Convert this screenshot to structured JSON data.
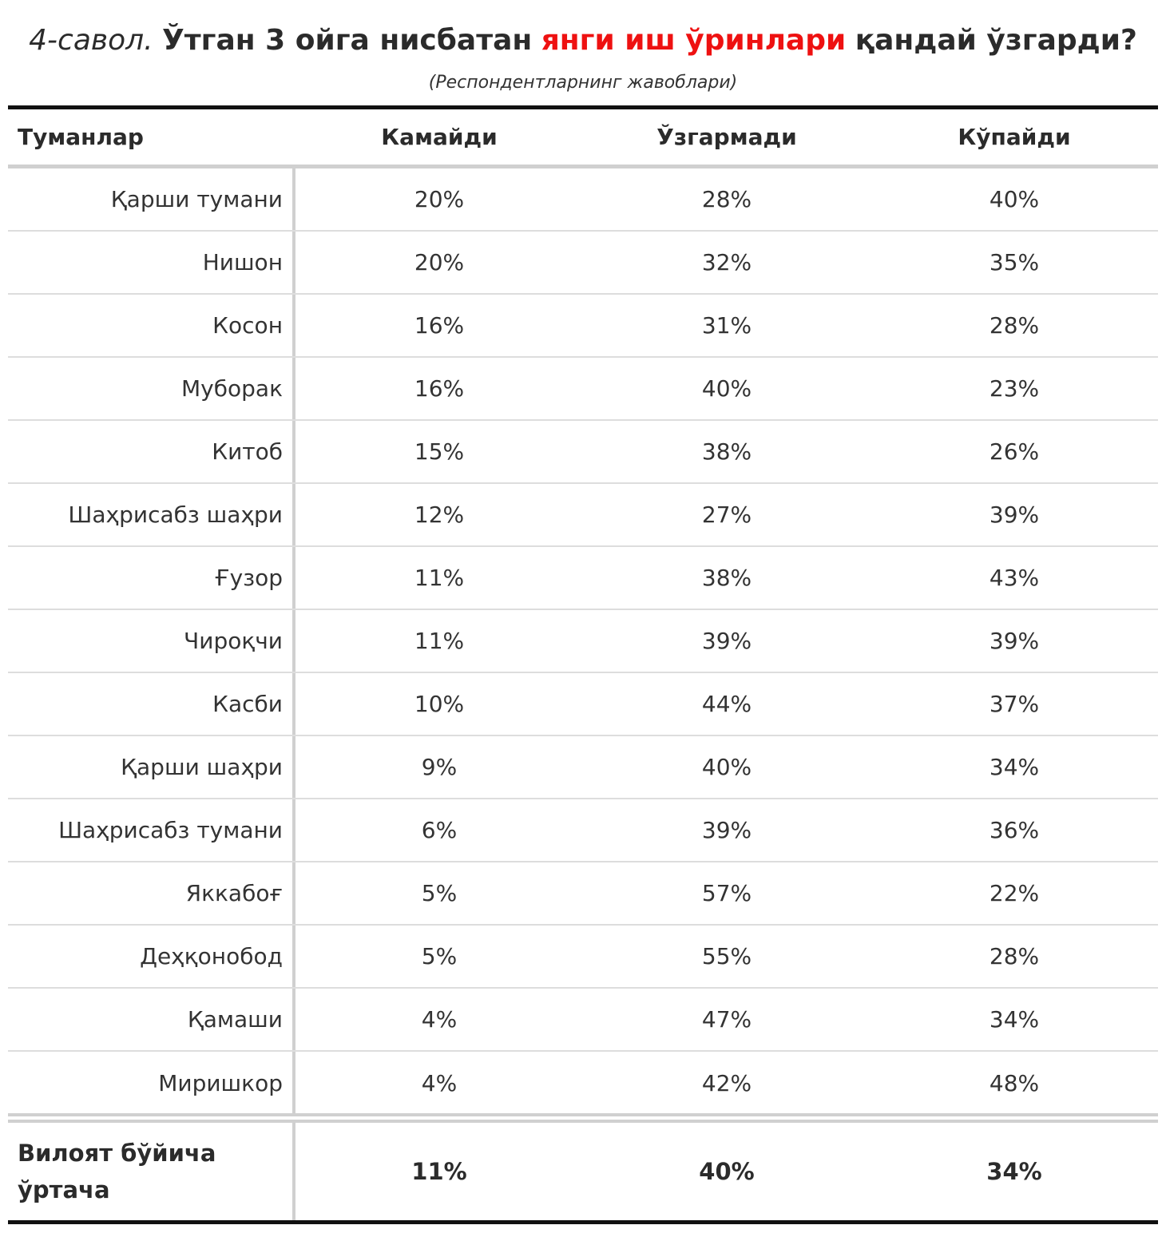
{
  "title": {
    "number": "4-савол.",
    "before": "Ўтган 3 ойга нисбатан",
    "highlight": "янги иш ўринлари",
    "after": "қандай ўзгарди?",
    "highlight_color": "#ee1111"
  },
  "subtitle": "(Респондентларнинг жавоблари)",
  "columns": [
    "Туманлар",
    "Камайди",
    "Ўзгармади",
    "Кўпайди"
  ],
  "rows": [
    {
      "name": "Қарши тумани",
      "decreased": "20%",
      "unchanged": "28%",
      "increased": "40%"
    },
    {
      "name": "Нишон",
      "decreased": "20%",
      "unchanged": "32%",
      "increased": "35%"
    },
    {
      "name": "Косон",
      "decreased": "16%",
      "unchanged": "31%",
      "increased": "28%"
    },
    {
      "name": "Муборак",
      "decreased": "16%",
      "unchanged": "40%",
      "increased": "23%"
    },
    {
      "name": "Китоб",
      "decreased": "15%",
      "unchanged": "38%",
      "increased": "26%"
    },
    {
      "name": "Шаҳрисабз шаҳри",
      "decreased": "12%",
      "unchanged": "27%",
      "increased": "39%"
    },
    {
      "name": "Ғузор",
      "decreased": "11%",
      "unchanged": "38%",
      "increased": "43%"
    },
    {
      "name": "Чироқчи",
      "decreased": "11%",
      "unchanged": "39%",
      "increased": "39%"
    },
    {
      "name": "Касби",
      "decreased": "10%",
      "unchanged": "44%",
      "increased": "37%"
    },
    {
      "name": "Қарши шаҳри",
      "decreased": "9%",
      "unchanged": "40%",
      "increased": "34%"
    },
    {
      "name": "Шаҳрисабз тумани",
      "decreased": "6%",
      "unchanged": "39%",
      "increased": "36%"
    },
    {
      "name": "Яккабоғ",
      "decreased": "5%",
      "unchanged": "57%",
      "increased": "22%"
    },
    {
      "name": "Деҳқонобод",
      "decreased": "5%",
      "unchanged": "55%",
      "increased": "28%"
    },
    {
      "name": "Қамаши",
      "decreased": "4%",
      "unchanged": "47%",
      "increased": "34%"
    },
    {
      "name": "Миришкор",
      "decreased": "4%",
      "unchanged": "42%",
      "increased": "48%"
    }
  ],
  "footer": {
    "name": "Вилоят бўйича ўртача",
    "decreased": "11%",
    "unchanged": "40%",
    "increased": "34%"
  }
}
